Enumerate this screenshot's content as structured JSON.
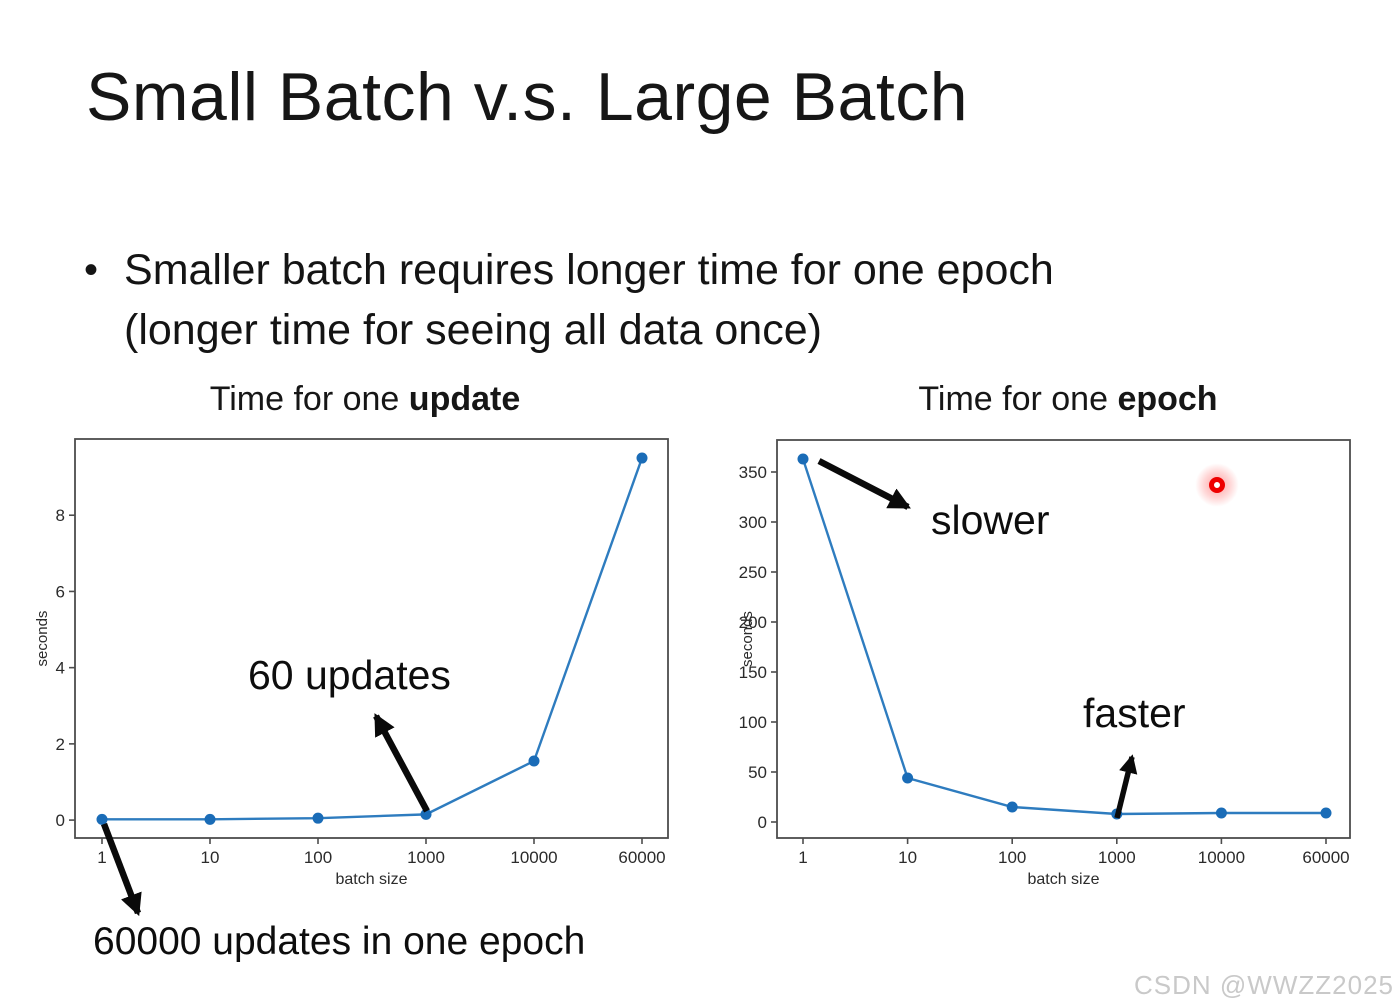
{
  "slide": {
    "title": "Small Batch v.s. Large Batch",
    "bullet": {
      "line1": "Smaller batch requires longer time for one epoch",
      "line2": "(longer time for seeing all data once)"
    },
    "watermark": "CSDN @WWZZ2025"
  },
  "colors": {
    "line": "#2e7cbf",
    "marker": "#1a6cb7",
    "axis": "#4d4d4d",
    "tick_text": "#2b2b2b",
    "text": "#141414",
    "laser": "#ff0000",
    "watermark": "#c9c9c9"
  },
  "chart_data": [
    {
      "type": "line",
      "title": {
        "prefix": "Time for one ",
        "bold": "update"
      },
      "x": [
        1,
        10,
        100,
        1000,
        10000,
        60000
      ],
      "x_tick_labels": [
        "1",
        "10",
        "100",
        "1000",
        "10000",
        "60000"
      ],
      "x_axis_scale": "log",
      "values": [
        0.02,
        0.02,
        0.05,
        0.15,
        1.55,
        9.5
      ],
      "xlabel": "batch size",
      "ylabel": "seconds",
      "yticks": [
        0,
        2,
        4,
        6,
        8
      ],
      "ylim": [
        -0.47,
        10.0
      ],
      "grid": false,
      "legend": "none",
      "annotations": [
        {
          "label": "60 updates",
          "target": "data point at batch size 1000"
        },
        {
          "label": "60000 updates in one epoch",
          "target": "data point at batch size 1"
        }
      ]
    },
    {
      "type": "line",
      "title": {
        "prefix": "Time for one ",
        "bold": "epoch"
      },
      "x": [
        1,
        10,
        100,
        1000,
        10000,
        60000
      ],
      "x_tick_labels": [
        "1",
        "10",
        "100",
        "1000",
        "10000",
        "60000"
      ],
      "x_axis_scale": "log",
      "values": [
        363,
        44,
        15,
        8,
        9,
        9
      ],
      "xlabel": "batch size",
      "ylabel": "seconds",
      "yticks": [
        0,
        50,
        100,
        150,
        200,
        250,
        300,
        350
      ],
      "ylim": [
        -16,
        382
      ],
      "grid": false,
      "legend": "none",
      "annotations": [
        {
          "label": "slower",
          "target": "data point at batch size 1"
        },
        {
          "label": "faster",
          "target": "data point at batch size 1000"
        }
      ]
    }
  ]
}
